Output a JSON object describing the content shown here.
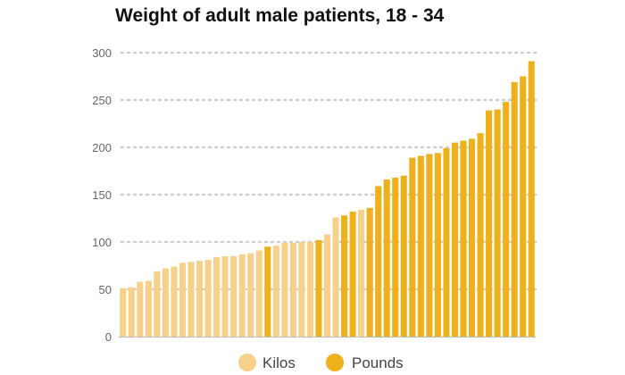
{
  "chart_data": {
    "type": "bar",
    "title": "Weight of adult male patients, 18 - 34",
    "xlabel": "",
    "ylabel": "",
    "ylim": [
      0,
      300
    ],
    "yticks": [
      0,
      50,
      100,
      150,
      200,
      250,
      300
    ],
    "grid": true,
    "legend_position": "bottom-center",
    "colors": {
      "Kilos": "#f7d08a",
      "Pounds": "#eeb01b"
    },
    "legend": [
      "Kilos",
      "Pounds"
    ],
    "bars": [
      {
        "unit": "Kilos",
        "value": 51
      },
      {
        "unit": "Kilos",
        "value": 52
      },
      {
        "unit": "Kilos",
        "value": 58
      },
      {
        "unit": "Kilos",
        "value": 59
      },
      {
        "unit": "Kilos",
        "value": 69
      },
      {
        "unit": "Kilos",
        "value": 72
      },
      {
        "unit": "Kilos",
        "value": 74
      },
      {
        "unit": "Kilos",
        "value": 78
      },
      {
        "unit": "Kilos",
        "value": 79
      },
      {
        "unit": "Kilos",
        "value": 80
      },
      {
        "unit": "Kilos",
        "value": 81
      },
      {
        "unit": "Kilos",
        "value": 84
      },
      {
        "unit": "Kilos",
        "value": 85
      },
      {
        "unit": "Kilos",
        "value": 85
      },
      {
        "unit": "Kilos",
        "value": 87
      },
      {
        "unit": "Kilos",
        "value": 88
      },
      {
        "unit": "Kilos",
        "value": 91
      },
      {
        "unit": "Pounds",
        "value": 95
      },
      {
        "unit": "Kilos",
        "value": 96
      },
      {
        "unit": "Kilos",
        "value": 99
      },
      {
        "unit": "Kilos",
        "value": 99
      },
      {
        "unit": "Kilos",
        "value": 100
      },
      {
        "unit": "Kilos",
        "value": 100
      },
      {
        "unit": "Pounds",
        "value": 102
      },
      {
        "unit": "Kilos",
        "value": 108
      },
      {
        "unit": "Kilos",
        "value": 126
      },
      {
        "unit": "Pounds",
        "value": 128
      },
      {
        "unit": "Pounds",
        "value": 132
      },
      {
        "unit": "Kilos",
        "value": 134
      },
      {
        "unit": "Pounds",
        "value": 136
      },
      {
        "unit": "Pounds",
        "value": 159
      },
      {
        "unit": "Pounds",
        "value": 166
      },
      {
        "unit": "Pounds",
        "value": 168
      },
      {
        "unit": "Pounds",
        "value": 170
      },
      {
        "unit": "Pounds",
        "value": 189
      },
      {
        "unit": "Pounds",
        "value": 191
      },
      {
        "unit": "Pounds",
        "value": 193
      },
      {
        "unit": "Pounds",
        "value": 194
      },
      {
        "unit": "Pounds",
        "value": 199
      },
      {
        "unit": "Pounds",
        "value": 205
      },
      {
        "unit": "Pounds",
        "value": 207
      },
      {
        "unit": "Pounds",
        "value": 209
      },
      {
        "unit": "Pounds",
        "value": 215
      },
      {
        "unit": "Pounds",
        "value": 239
      },
      {
        "unit": "Pounds",
        "value": 240
      },
      {
        "unit": "Pounds",
        "value": 248
      },
      {
        "unit": "Pounds",
        "value": 269
      },
      {
        "unit": "Pounds",
        "value": 275
      },
      {
        "unit": "Pounds",
        "value": 291
      }
    ]
  }
}
